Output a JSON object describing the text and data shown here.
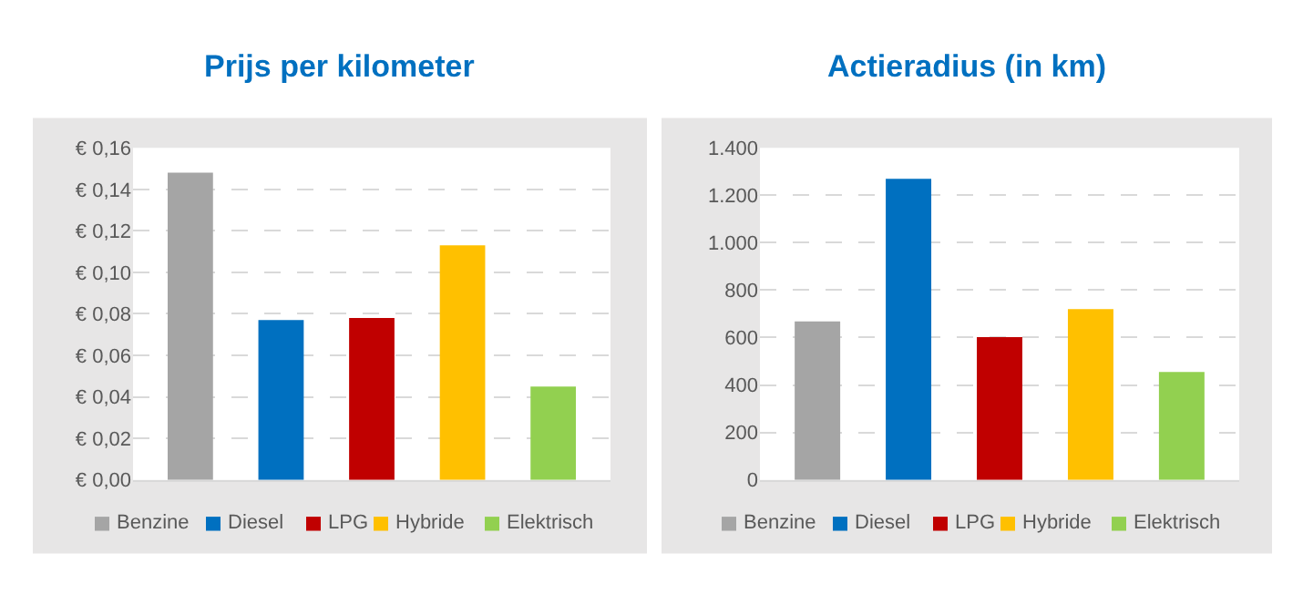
{
  "chart_data": [
    {
      "type": "bar",
      "title": "Prijs per kilometer",
      "categories": [
        null
      ],
      "series": [
        {
          "name": "Benzine",
          "color": "#a5a5a5",
          "values": [
            0.148
          ]
        },
        {
          "name": "Diesel",
          "color": "#0070c0",
          "values": [
            0.077
          ]
        },
        {
          "name": "LPG",
          "color": "#c00000",
          "values": [
            0.078
          ]
        },
        {
          "name": "Hybride",
          "color": "#ffc000",
          "values": [
            0.113
          ]
        },
        {
          "name": "Elektrisch",
          "color": "#92d050",
          "values": [
            0.045
          ]
        }
      ],
      "ylim": [
        0,
        0.16
      ],
      "yticks": [
        {
          "value": 0,
          "label": "€ 0,00"
        },
        {
          "value": 0.02,
          "label": "€ 0,02"
        },
        {
          "value": 0.04,
          "label": "€ 0,04"
        },
        {
          "value": 0.06,
          "label": "€ 0,06"
        },
        {
          "value": 0.08,
          "label": "€ 0,08"
        },
        {
          "value": 0.1,
          "label": "€ 0,10"
        },
        {
          "value": 0.12,
          "label": "€ 0,12"
        },
        {
          "value": 0.14,
          "label": "€ 0,14"
        },
        {
          "value": 0.16,
          "label": "€ 0,16"
        }
      ],
      "grid": "y",
      "legend": "bottom"
    },
    {
      "type": "bar",
      "title": "Actieradius (in km)",
      "categories": [
        null
      ],
      "series": [
        {
          "name": "Benzine",
          "color": "#a5a5a5",
          "values": [
            668
          ]
        },
        {
          "name": "Diesel",
          "color": "#0070c0",
          "values": [
            1270
          ]
        },
        {
          "name": "LPG",
          "color": "#c00000",
          "values": [
            602
          ]
        },
        {
          "name": "Hybride",
          "color": "#ffc000",
          "values": [
            720
          ]
        },
        {
          "name": "Elektrisch",
          "color": "#92d050",
          "values": [
            455
          ]
        }
      ],
      "ylim": [
        0,
        1400
      ],
      "yticks": [
        0,
        200,
        400,
        600,
        800,
        {
          "value": 1000,
          "label": "1.000"
        },
        {
          "value": 1200,
          "label": "1.200"
        },
        {
          "value": 1400,
          "label": "1.400"
        }
      ],
      "grid": "y",
      "legend": "bottom"
    }
  ]
}
